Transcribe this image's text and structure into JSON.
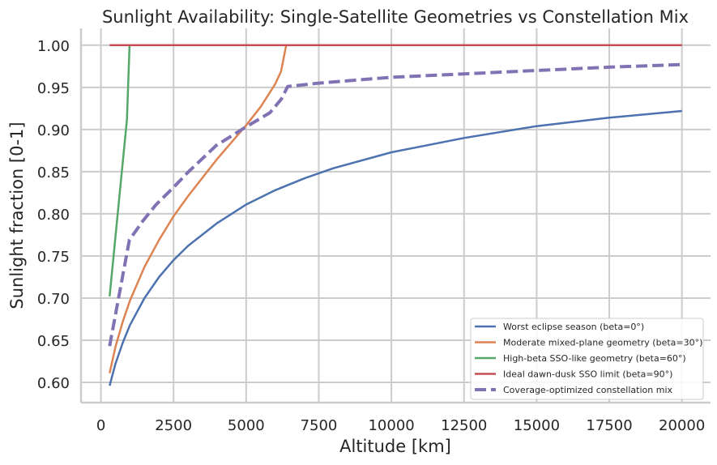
{
  "chart_data": {
    "type": "line",
    "title": "Sunlight Availability: Single-Satellite Geometries vs Constellation Mix",
    "xlabel": "Altitude [km]",
    "ylabel": "Sunlight fraction [0-1]",
    "xlim": [
      -685,
      20985
    ],
    "ylim": [
      0.576,
      1.02
    ],
    "xticks": [
      0,
      2500,
      5000,
      7500,
      10000,
      12500,
      15000,
      17500,
      20000
    ],
    "yticks": [
      0.6,
      0.65,
      0.7,
      0.75,
      0.8,
      0.85,
      0.9,
      0.95,
      1.0
    ],
    "grid": true,
    "legend_position": "lower-right",
    "series": [
      {
        "name": "Worst eclipse season (beta=0°)",
        "color": "#4c72b0",
        "dash": "solid",
        "x": [
          300,
          500,
          750,
          1000,
          1500,
          2000,
          2500,
          3000,
          4000,
          5000,
          6000,
          7000,
          8000,
          10000,
          12500,
          15000,
          17500,
          20000
        ],
        "y": [
          0.596,
          0.622,
          0.647,
          0.668,
          0.7,
          0.725,
          0.745,
          0.762,
          0.789,
          0.811,
          0.828,
          0.842,
          0.854,
          0.873,
          0.89,
          0.904,
          0.914,
          0.922
        ]
      },
      {
        "name": "Moderate mixed-plane geometry (beta=30°)",
        "color": "#dd8452",
        "dash": "solid",
        "x": [
          300,
          500,
          750,
          1000,
          1500,
          2000,
          2500,
          3000,
          4000,
          5000,
          5500,
          6000,
          6200,
          6378,
          20000
        ],
        "y": [
          0.611,
          0.642,
          0.672,
          0.697,
          0.737,
          0.769,
          0.797,
          0.821,
          0.865,
          0.905,
          0.927,
          0.954,
          0.969,
          1.0,
          1.0
        ]
      },
      {
        "name": "High-beta SSO-like geometry (beta=60°)",
        "color": "#55a868",
        "dash": "solid",
        "x": [
          300,
          895,
          986,
          20000
        ],
        "y": [
          0.702,
          0.912,
          1.0,
          1.0
        ]
      },
      {
        "name": "Ideal dawn-dusk SSO limit (beta=90°)",
        "color": "#c44e52",
        "dash": "solid",
        "x": [
          300,
          20000
        ],
        "y": [
          1.0,
          1.0
        ]
      },
      {
        "name": "Coverage-optimized constellation mix",
        "color": "#8172b3",
        "dash": "dashed",
        "x": [
          300,
          979,
          1455,
          1900,
          2460,
          3020,
          3970,
          4895,
          5820,
          6210,
          6430,
          7500,
          10000,
          12500,
          15000,
          17500,
          20000
        ],
        "y": [
          0.643,
          0.769,
          0.792,
          0.811,
          0.83,
          0.85,
          0.881,
          0.901,
          0.92,
          0.936,
          0.951,
          0.955,
          0.962,
          0.966,
          0.97,
          0.974,
          0.977
        ]
      }
    ]
  }
}
